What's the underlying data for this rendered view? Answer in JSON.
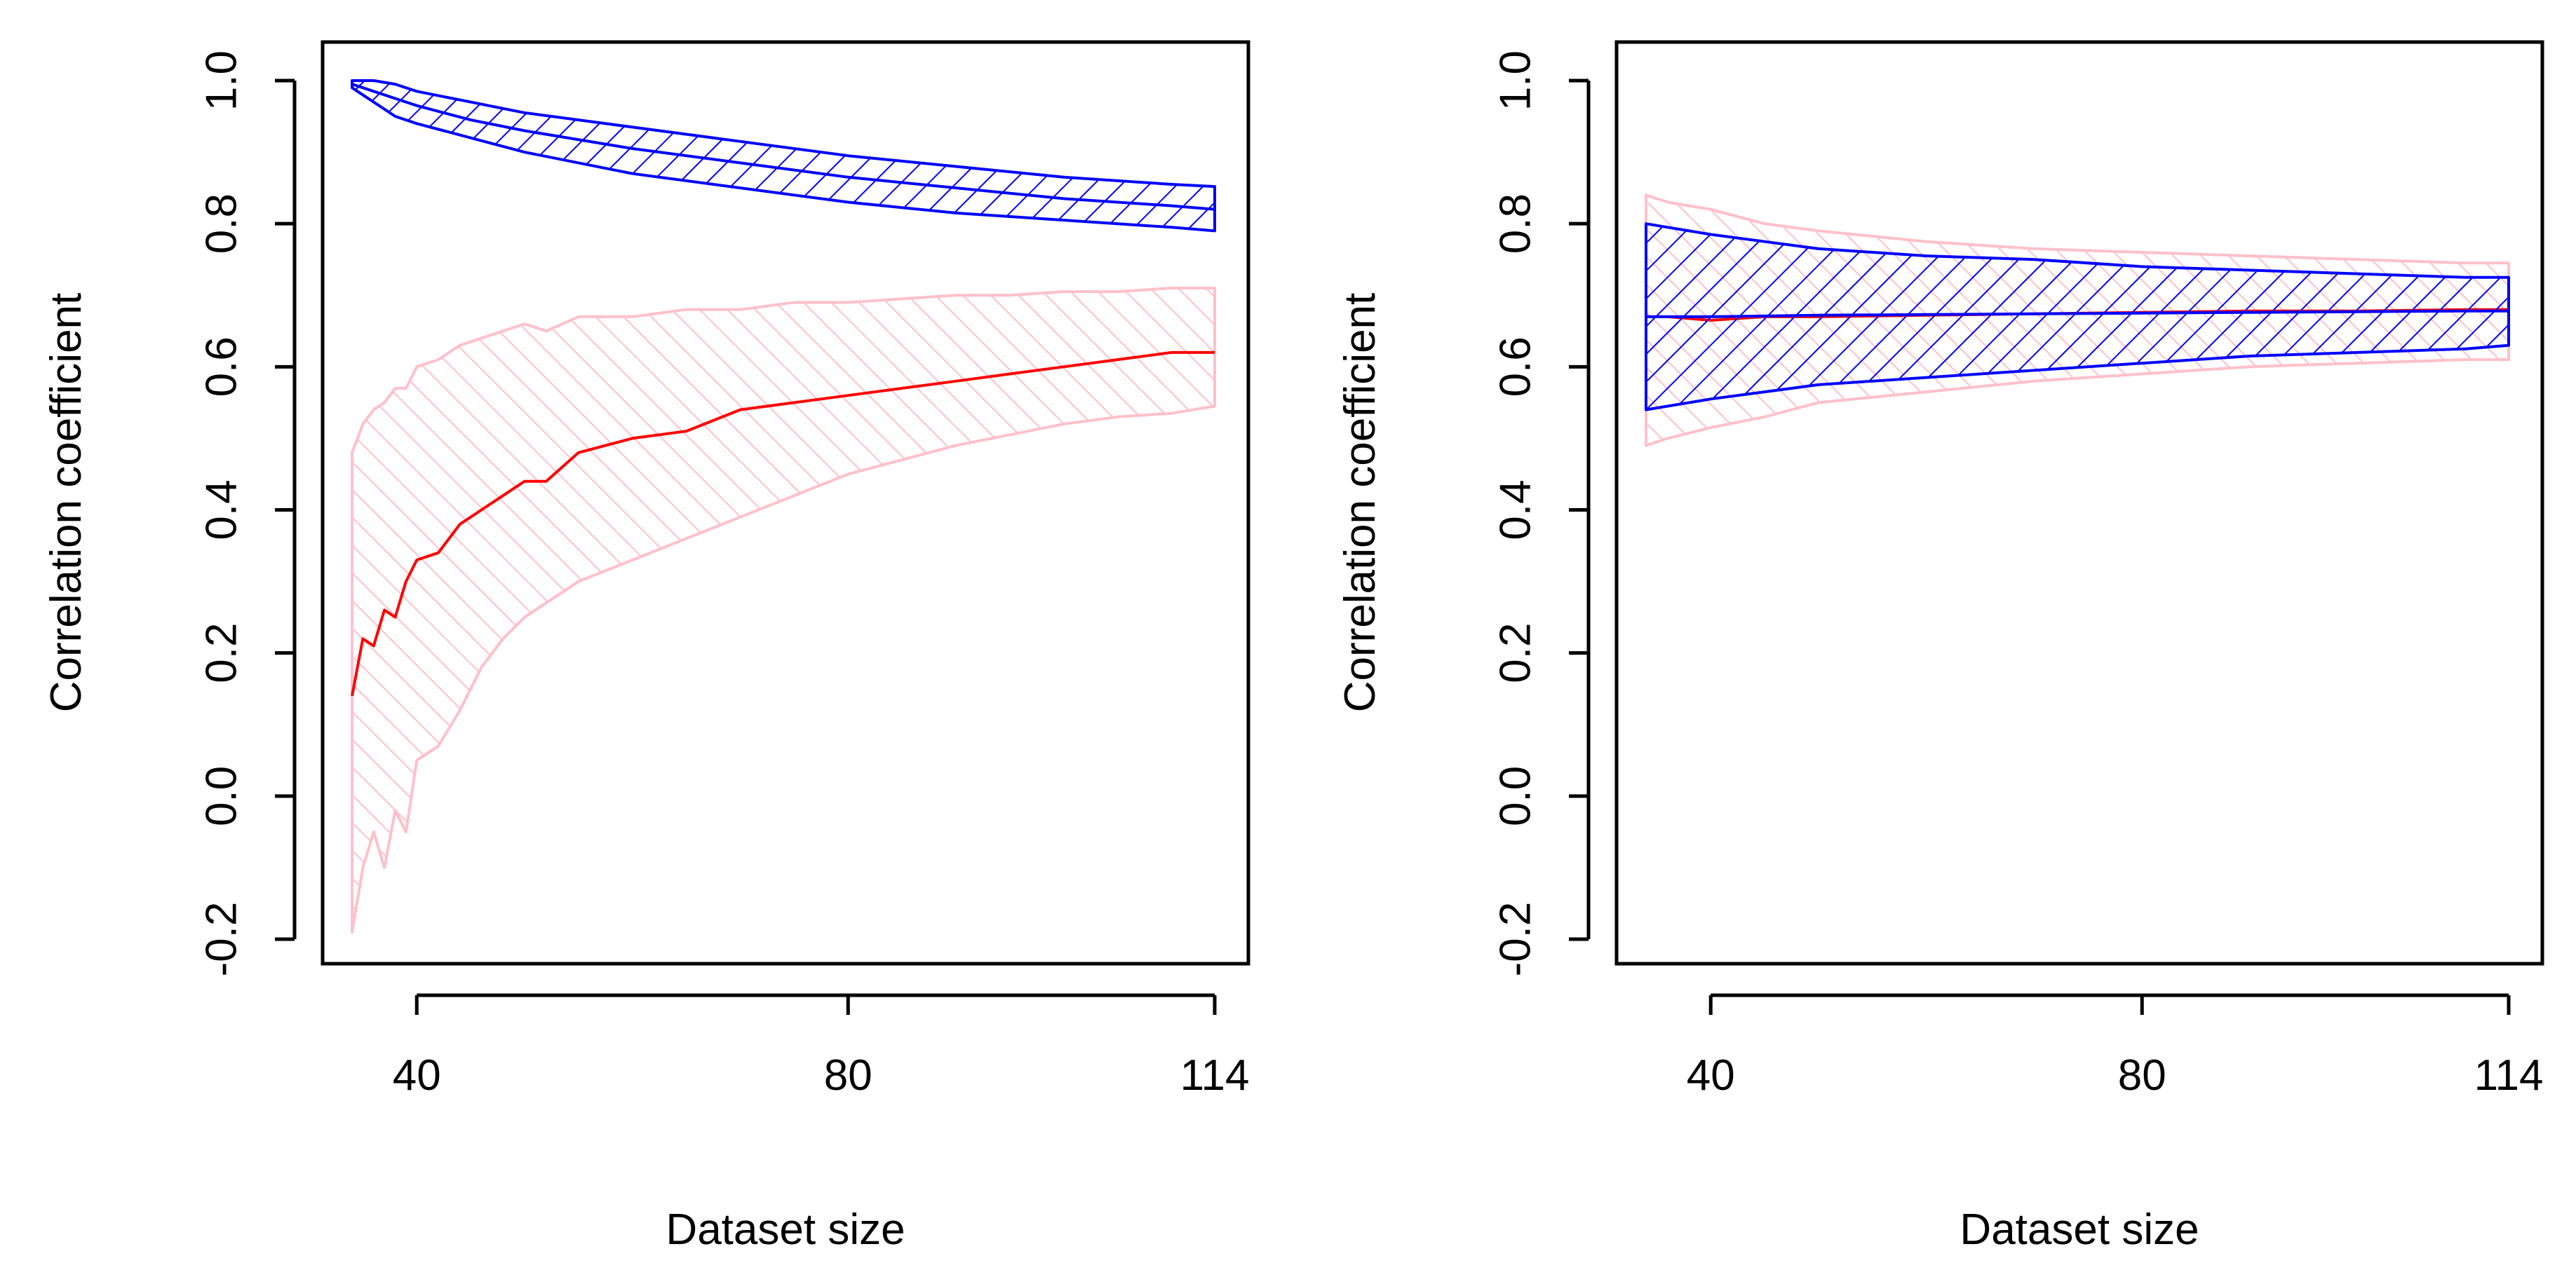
{
  "chart_data": [
    {
      "type": "area",
      "panel": "left",
      "xlabel": "Dataset size",
      "ylabel": "Correlation coefficient",
      "xlim": [
        34,
        114
      ],
      "ylim": [
        -0.2,
        1.0
      ],
      "x_ticks": [
        40,
        80,
        114
      ],
      "y_ticks": [
        -0.2,
        0.0,
        0.2,
        0.4,
        0.6,
        0.8,
        1.0
      ],
      "x_tick_labels": [
        "40",
        "80",
        "114"
      ],
      "y_tick_labels": [
        "-0.2",
        "0.0",
        "0.2",
        "0.4",
        "0.6",
        "0.8",
        "1.0"
      ],
      "series": [
        {
          "name": "blue band",
          "color": "#0000ff",
          "hatch": "//",
          "x": [
            34,
            35,
            36,
            38,
            40,
            45,
            50,
            60,
            70,
            80,
            90,
            100,
            110,
            114
          ],
          "lower": [
            0.99,
            0.98,
            0.97,
            0.95,
            0.94,
            0.92,
            0.9,
            0.87,
            0.85,
            0.83,
            0.815,
            0.805,
            0.795,
            0.79
          ],
          "upper": [
            1.0,
            1.0,
            1.0,
            0.995,
            0.985,
            0.97,
            0.955,
            0.935,
            0.915,
            0.895,
            0.88,
            0.865,
            0.855,
            0.852
          ],
          "center": [
            0.995,
            0.99,
            0.985,
            0.975,
            0.965,
            0.945,
            0.93,
            0.905,
            0.885,
            0.865,
            0.85,
            0.835,
            0.825,
            0.82
          ]
        },
        {
          "name": "pink band",
          "color": "#ffc0cb",
          "center_color": "#ff0000",
          "hatch": "\\\\",
          "x": [
            34,
            35,
            36,
            37,
            38,
            39,
            40,
            42,
            44,
            46,
            48,
            50,
            52,
            55,
            60,
            65,
            70,
            75,
            80,
            85,
            90,
            95,
            100,
            105,
            110,
            114
          ],
          "lower": [
            -0.19,
            -0.1,
            -0.05,
            -0.1,
            -0.02,
            -0.05,
            0.05,
            0.07,
            0.12,
            0.18,
            0.22,
            0.25,
            0.27,
            0.3,
            0.33,
            0.36,
            0.39,
            0.42,
            0.45,
            0.47,
            0.49,
            0.505,
            0.52,
            0.53,
            0.535,
            0.545
          ],
          "upper": [
            0.48,
            0.52,
            0.54,
            0.55,
            0.57,
            0.57,
            0.6,
            0.61,
            0.63,
            0.64,
            0.65,
            0.66,
            0.65,
            0.67,
            0.67,
            0.68,
            0.68,
            0.69,
            0.69,
            0.695,
            0.7,
            0.7,
            0.705,
            0.705,
            0.71,
            0.71
          ],
          "center": [
            0.14,
            0.22,
            0.21,
            0.26,
            0.25,
            0.3,
            0.33,
            0.34,
            0.38,
            0.4,
            0.42,
            0.44,
            0.44,
            0.48,
            0.5,
            0.51,
            0.54,
            0.55,
            0.56,
            0.57,
            0.58,
            0.59,
            0.6,
            0.61,
            0.62,
            0.62
          ]
        }
      ]
    },
    {
      "type": "area",
      "panel": "right",
      "xlabel": "Dataset size",
      "ylabel": "Correlation coefficient",
      "xlim": [
        34,
        114
      ],
      "ylim": [
        -0.2,
        1.0
      ],
      "x_ticks": [
        40,
        80,
        114
      ],
      "y_ticks": [
        -0.2,
        0.0,
        0.2,
        0.4,
        0.6,
        0.8,
        1.0
      ],
      "x_tick_labels": [
        "40",
        "80",
        "114"
      ],
      "y_tick_labels": [
        "-0.2",
        "0.0",
        "0.2",
        "0.4",
        "0.6",
        "0.8",
        "1.0"
      ],
      "series": [
        {
          "name": "pink band",
          "color": "#ffc0cb",
          "center_color": "#ff0000",
          "hatch": "\\\\",
          "x": [
            34,
            36,
            40,
            45,
            50,
            60,
            70,
            80,
            90,
            100,
            110,
            114
          ],
          "lower": [
            0.49,
            0.5,
            0.515,
            0.53,
            0.55,
            0.565,
            0.58,
            0.59,
            0.6,
            0.605,
            0.61,
            0.61
          ],
          "upper": [
            0.84,
            0.83,
            0.82,
            0.8,
            0.79,
            0.775,
            0.765,
            0.76,
            0.755,
            0.75,
            0.745,
            0.745
          ],
          "center": [
            0.67,
            0.67,
            0.665,
            0.67,
            0.67,
            0.672,
            0.674,
            0.676,
            0.678,
            0.678,
            0.68,
            0.68
          ]
        },
        {
          "name": "blue band",
          "color": "#0000ff",
          "hatch": "//",
          "x": [
            34,
            36,
            40,
            45,
            50,
            60,
            70,
            80,
            90,
            100,
            110,
            114
          ],
          "lower": [
            0.54,
            0.545,
            0.555,
            0.565,
            0.575,
            0.585,
            0.595,
            0.605,
            0.615,
            0.62,
            0.625,
            0.63
          ],
          "upper": [
            0.8,
            0.795,
            0.785,
            0.775,
            0.765,
            0.755,
            0.75,
            0.74,
            0.735,
            0.73,
            0.725,
            0.725
          ],
          "center": [
            0.67,
            0.67,
            0.67,
            0.671,
            0.672,
            0.673,
            0.674,
            0.675,
            0.676,
            0.677,
            0.678,
            0.678
          ]
        }
      ]
    }
  ]
}
